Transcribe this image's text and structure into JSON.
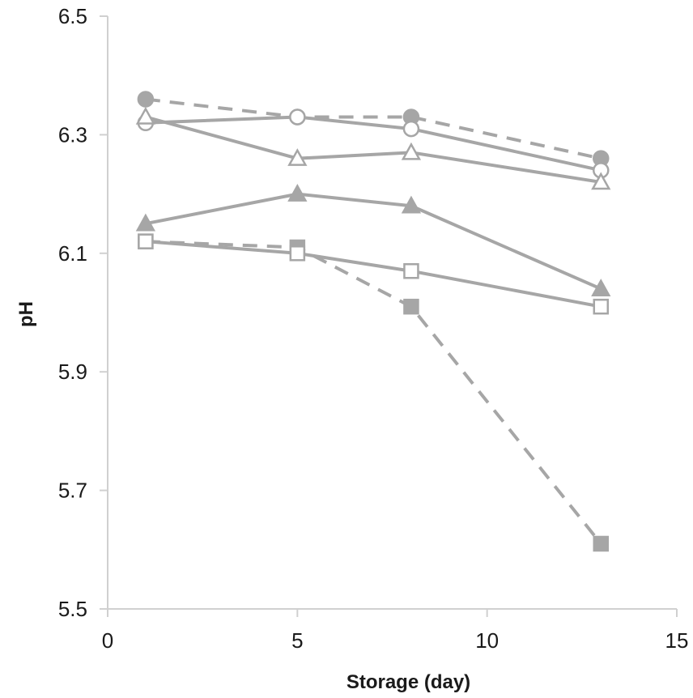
{
  "chart_data": {
    "type": "line",
    "title": "",
    "xlabel": "Storage (day)",
    "ylabel": "pH",
    "xlim": [
      0,
      15
    ],
    "ylim": [
      5.5,
      6.5
    ],
    "x_ticks": [
      0,
      5,
      10,
      15
    ],
    "y_ticks": [
      5.5,
      5.7,
      5.9,
      6.1,
      6.3,
      6.5
    ],
    "y_tick_labels": [
      "5.5",
      "5.7",
      "5.9",
      "6.1",
      "6.3",
      "6.5"
    ],
    "x_tick_labels": [
      "0",
      "5",
      "10",
      "15"
    ],
    "grid": false,
    "legend": "none",
    "colors": {
      "series": "#a6a6a6",
      "axis": "#d0d0d0",
      "text": "#1a1a1a"
    },
    "series": [
      {
        "marker": "filled-circle",
        "line": "dashed",
        "x": [
          1,
          5,
          8,
          13
        ],
        "y": [
          6.36,
          6.33,
          6.33,
          6.26
        ]
      },
      {
        "marker": "open-circle",
        "line": "solid",
        "x": [
          1,
          5,
          8,
          13
        ],
        "y": [
          6.32,
          6.33,
          6.31,
          6.24
        ]
      },
      {
        "marker": "open-triangle",
        "line": "solid",
        "x": [
          1,
          5,
          8,
          13
        ],
        "y": [
          6.33,
          6.26,
          6.27,
          6.22
        ]
      },
      {
        "marker": "filled-triangle",
        "line": "solid",
        "x": [
          1,
          5,
          8,
          13
        ],
        "y": [
          6.15,
          6.2,
          6.18,
          6.04
        ]
      },
      {
        "marker": "filled-square",
        "line": "dashed",
        "x": [
          1,
          5,
          8,
          13
        ],
        "y": [
          6.12,
          6.11,
          6.01,
          5.61
        ]
      },
      {
        "marker": "open-square",
        "line": "solid",
        "x": [
          1,
          5,
          8,
          13
        ],
        "y": [
          6.12,
          6.1,
          6.07,
          6.01
        ]
      }
    ]
  }
}
